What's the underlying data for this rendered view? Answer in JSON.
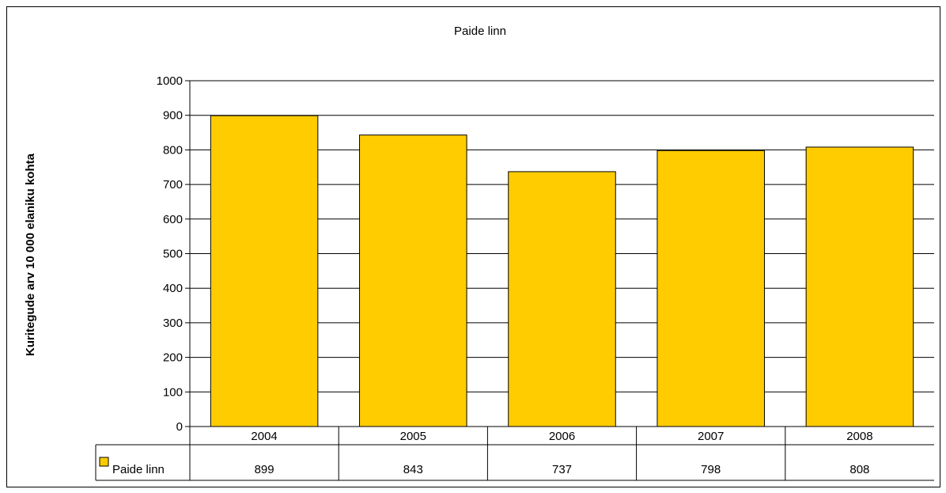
{
  "chart_data": {
    "type": "bar",
    "title": "Paide linn",
    "ylabel": "Kuritegude arv 10 000 elaniku kohta",
    "xlabel": "",
    "categories": [
      "2004",
      "2005",
      "2006",
      "2007",
      "2008"
    ],
    "series": [
      {
        "name": "Paide linn",
        "values": [
          899,
          843,
          737,
          798,
          808
        ],
        "color": "#ffcc00"
      }
    ],
    "ylim": [
      0,
      1000
    ],
    "yticks": [
      0,
      100,
      200,
      300,
      400,
      500,
      600,
      700,
      800,
      900,
      1000
    ],
    "grid": true,
    "legend": "data-table",
    "table_values": [
      "899",
      "843",
      "737",
      "798",
      "808"
    ]
  }
}
